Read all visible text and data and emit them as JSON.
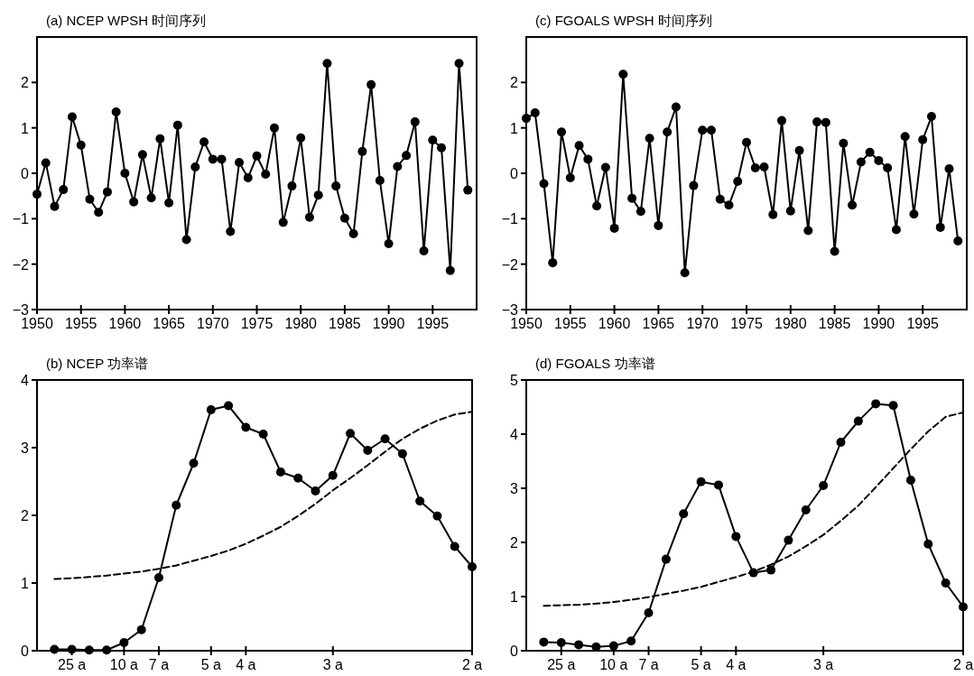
{
  "chart_data": [
    {
      "type": "line",
      "title": "(a) NCEP WPSH 时间序列",
      "x": [
        1950,
        1951,
        1952,
        1953,
        1954,
        1955,
        1956,
        1957,
        1958,
        1959,
        1960,
        1961,
        1962,
        1963,
        1964,
        1965,
        1966,
        1967,
        1968,
        1969,
        1970,
        1971,
        1972,
        1973,
        1974,
        1975,
        1976,
        1977,
        1978,
        1979,
        1980,
        1981,
        1982,
        1983,
        1984,
        1985,
        1986,
        1987,
        1988,
        1989,
        1990,
        1991,
        1992,
        1993,
        1994,
        1995,
        1996,
        1997,
        1998,
        1999
      ],
      "xlim": [
        1950,
        2000
      ],
      "xticks": [
        1950,
        1955,
        1960,
        1965,
        1970,
        1975,
        1980,
        1985,
        1990,
        1995
      ],
      "ylim": [
        -3,
        3
      ],
      "yticks": [
        -3,
        -2,
        -1,
        0,
        1,
        2
      ],
      "series": [
        {
          "color": "#000000",
          "marker": "circle",
          "line_style": "solid",
          "values": [
            -0.46,
            0.23,
            -0.73,
            -0.36,
            1.24,
            0.62,
            -0.57,
            -0.86,
            -0.41,
            1.35,
            0.0,
            -0.63,
            0.41,
            -0.54,
            0.76,
            -0.65,
            1.06,
            -1.46,
            0.14,
            0.69,
            0.31,
            0.31,
            -1.28,
            0.24,
            -0.1,
            0.38,
            -0.02,
            1.0,
            -1.08,
            -0.28,
            0.78,
            -0.97,
            -0.48,
            2.42,
            -0.28,
            -0.99,
            -1.33,
            0.48,
            1.95,
            -0.16,
            -1.55,
            0.15,
            0.39,
            1.13,
            -1.71,
            0.73,
            0.56,
            -2.14,
            2.42,
            -0.37
          ]
        }
      ]
    },
    {
      "type": "line",
      "title": "(c) FGOALS WPSH 时间序列",
      "x": [
        1950,
        1951,
        1952,
        1953,
        1954,
        1955,
        1956,
        1957,
        1958,
        1959,
        1960,
        1961,
        1962,
        1963,
        1964,
        1965,
        1966,
        1967,
        1968,
        1969,
        1970,
        1971,
        1972,
        1973,
        1974,
        1975,
        1976,
        1977,
        1978,
        1979,
        1980,
        1981,
        1982,
        1983,
        1984,
        1985,
        1986,
        1987,
        1988,
        1989,
        1990,
        1991,
        1992,
        1993,
        1994,
        1995,
        1996,
        1997,
        1998,
        1999
      ],
      "xlim": [
        1950,
        2000
      ],
      "xticks": [
        1950,
        1955,
        1960,
        1965,
        1970,
        1975,
        1980,
        1985,
        1990,
        1995
      ],
      "ylim": [
        -3,
        3
      ],
      "yticks": [
        -3,
        -2,
        -1,
        0,
        1,
        2
      ],
      "series": [
        {
          "color": "#000000",
          "marker": "circle",
          "line_style": "solid",
          "values": [
            1.21,
            1.33,
            -0.23,
            -1.97,
            0.91,
            -0.1,
            0.61,
            0.31,
            -0.72,
            0.13,
            -1.21,
            2.18,
            -0.55,
            -0.84,
            0.77,
            -1.15,
            0.91,
            1.46,
            -2.19,
            -0.27,
            0.95,
            0.95,
            -0.57,
            -0.7,
            -0.18,
            0.68,
            0.12,
            0.14,
            -0.91,
            1.16,
            -0.83,
            0.5,
            -1.26,
            1.13,
            1.12,
            -1.72,
            0.66,
            -0.7,
            0.25,
            0.46,
            0.28,
            0.12,
            -1.24,
            0.81,
            -0.9,
            0.74,
            1.25,
            -1.19,
            0.1,
            -1.49
          ]
        }
      ]
    },
    {
      "type": "line",
      "title": "(b) NCEP 功率谱",
      "categories": [
        null,
        "25 a",
        null,
        null,
        "10 a",
        null,
        "7 a",
        null,
        null,
        "5 a",
        null,
        "4 a",
        null,
        null,
        null,
        null,
        "3 a",
        null,
        null,
        null,
        null,
        null,
        null,
        null,
        "2 a"
      ],
      "ylim": [
        0,
        4
      ],
      "yticks": [
        0,
        1,
        2,
        3,
        4
      ],
      "series": [
        {
          "color": "#000000",
          "marker": "circle",
          "line_style": "solid",
          "values": [
            0.02,
            0.02,
            0.01,
            0.01,
            0.12,
            0.31,
            1.08,
            2.15,
            2.77,
            3.56,
            3.62,
            3.3,
            3.2,
            2.64,
            2.55,
            2.36,
            2.59,
            3.21,
            2.96,
            3.13,
            2.91,
            2.21,
            1.99,
            1.54,
            1.24
          ]
        },
        {
          "color": "#000000",
          "marker": "none",
          "line_style": "dashed",
          "values": [
            1.06,
            1.07,
            1.09,
            1.11,
            1.14,
            1.17,
            1.21,
            1.26,
            1.33,
            1.4,
            1.48,
            1.58,
            1.7,
            1.83,
            1.99,
            2.17,
            2.37,
            2.55,
            2.74,
            2.94,
            3.13,
            3.28,
            3.4,
            3.49,
            3.53
          ]
        }
      ]
    },
    {
      "type": "line",
      "title": "(d) FGOALS 功率谱",
      "categories": [
        null,
        "25 a",
        null,
        null,
        "10 a",
        null,
        "7 a",
        null,
        null,
        "5 a",
        null,
        "4 a",
        null,
        null,
        null,
        null,
        "3 a",
        null,
        null,
        null,
        null,
        null,
        null,
        null,
        "2 a"
      ],
      "ylim": [
        0,
        5
      ],
      "yticks": [
        0,
        1,
        2,
        3,
        4,
        5
      ],
      "series": [
        {
          "color": "#000000",
          "marker": "circle",
          "line_style": "solid",
          "values": [
            0.16,
            0.15,
            0.11,
            0.07,
            0.09,
            0.18,
            0.7,
            1.69,
            2.53,
            3.12,
            3.06,
            2.11,
            1.44,
            1.49,
            2.04,
            2.6,
            3.05,
            3.85,
            4.24,
            4.56,
            4.53,
            3.15,
            1.97,
            1.25,
            0.81
          ]
        },
        {
          "color": "#000000",
          "marker": "none",
          "line_style": "dashed",
          "values": [
            0.83,
            0.84,
            0.85,
            0.87,
            0.9,
            0.94,
            0.99,
            1.05,
            1.11,
            1.18,
            1.27,
            1.36,
            1.46,
            1.59,
            1.74,
            1.93,
            2.14,
            2.4,
            2.68,
            3.02,
            3.37,
            3.72,
            4.05,
            4.32,
            4.4
          ]
        }
      ]
    }
  ]
}
